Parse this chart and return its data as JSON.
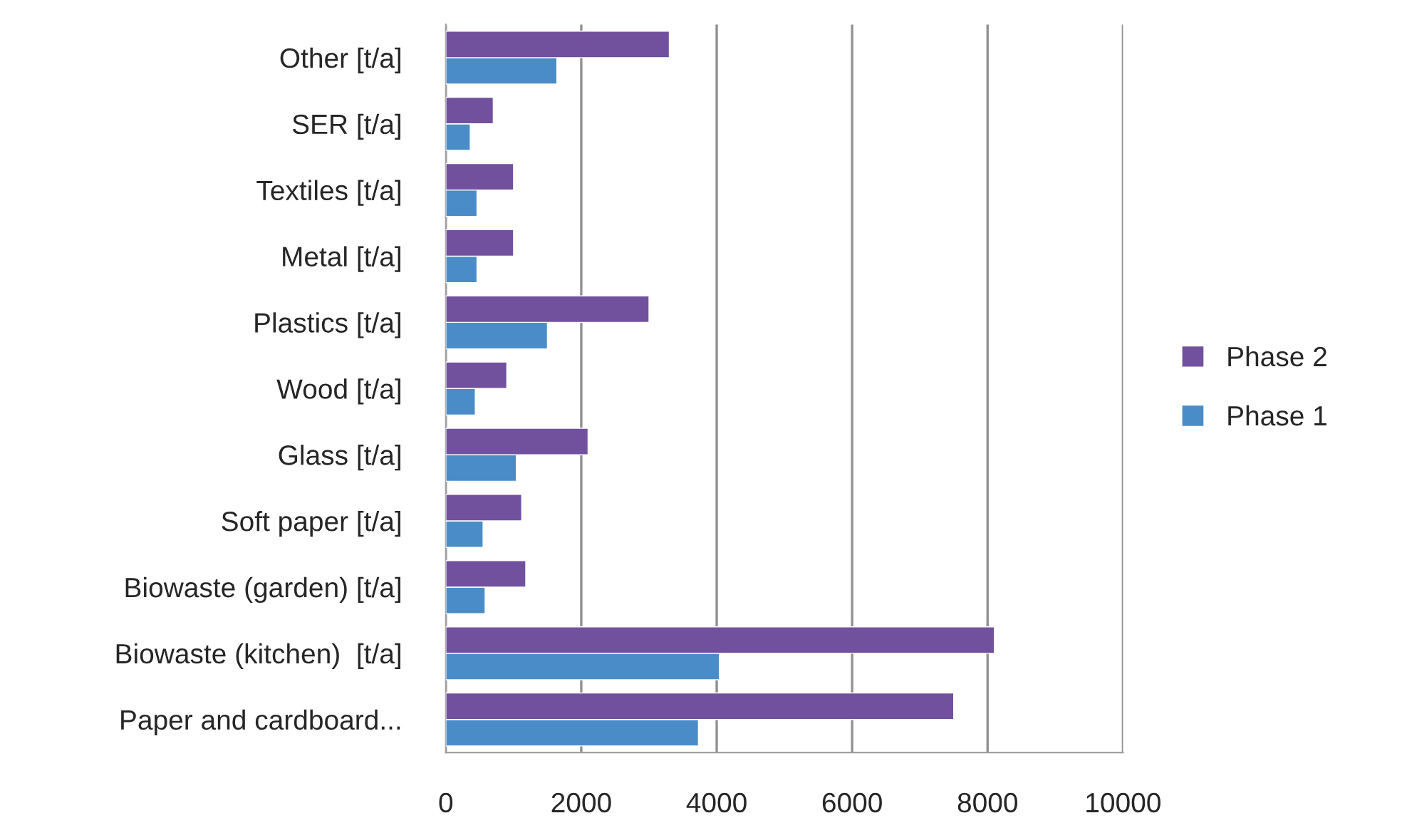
{
  "chart_data": {
    "type": "bar",
    "orientation": "horizontal",
    "categories": [
      "Other [t/a]",
      "SER [t/a]",
      "Textiles [t/a]",
      "Metal [t/a]",
      "Plastics [t/a]",
      "Wood [t/a]",
      "Glass [t/a]",
      "Soft paper [t/a]",
      "Biowaste (garden) [t/a]",
      "Biowaste (kitchen)  [t/a]",
      "Paper and cardboard..."
    ],
    "series": [
      {
        "name": "Phase 1",
        "color": "#4a8cc7",
        "values": [
          1640,
          360,
          460,
          460,
          1500,
          435,
          1040,
          550,
          580,
          4040,
          3730
        ]
      },
      {
        "name": "Phase 2",
        "color": "#71509e",
        "values": [
          3300,
          700,
          1000,
          1000,
          3000,
          900,
          2100,
          1120,
          1180,
          8100,
          7500
        ]
      }
    ],
    "xlim": [
      0,
      10000
    ],
    "xticks": [
      0,
      2000,
      4000,
      6000,
      8000,
      10000
    ],
    "grid": "x",
    "legend": "right"
  }
}
